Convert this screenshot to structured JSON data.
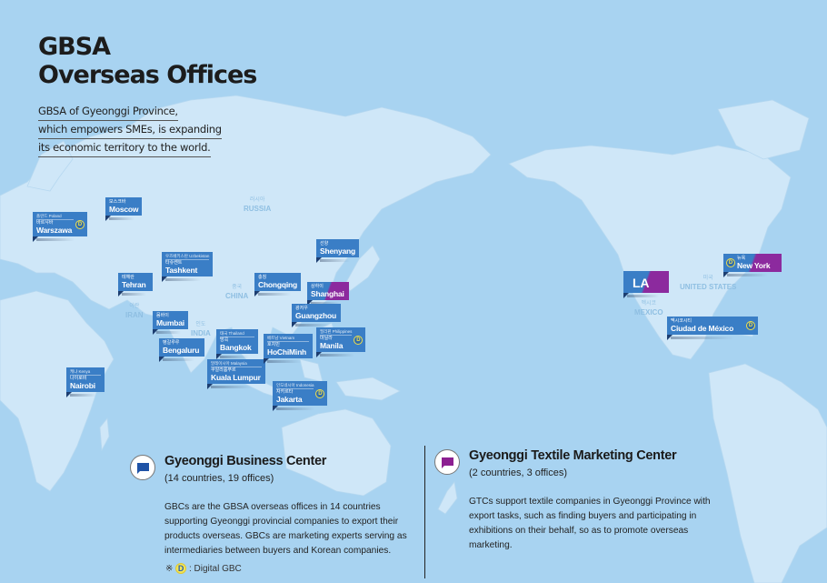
{
  "header": {
    "title_line1": "GBSA",
    "title_line2": "Overseas Offices",
    "intro": [
      "GBSA of Gyeonggi Province,",
      "which empowers SMEs, is expanding",
      "its economic territory to the world."
    ]
  },
  "colors": {
    "ocean": "#a8d3f1",
    "land": "#cfe7f8",
    "gbc": "#3a7ec6",
    "gtc": "#8c2a9e",
    "digital_badge": "#f1e14a"
  },
  "countries": [
    {
      "ko": "러시아",
      "en": "RUSSIA"
    },
    {
      "ko": "중국",
      "en": "CHINA"
    },
    {
      "ko": "이란",
      "en": "IRAN"
    },
    {
      "ko": "인도",
      "en": "INDIA"
    },
    {
      "ko": "미국",
      "en": "UNITED STATES"
    },
    {
      "ko": "멕시코",
      "en": "MEXICO"
    }
  ],
  "offices": [
    {
      "en": "Warszawa",
      "ko": "바르샤바",
      "country": "폴란드 Poland",
      "type": "gbc",
      "digital": true
    },
    {
      "en": "Moscow",
      "ko": "모스크바",
      "type": "gbc",
      "digital": false
    },
    {
      "en": "Tashkent",
      "ko": "타슈켄트",
      "country": "우즈베키스탄 Uzbekistan",
      "type": "gbc",
      "digital": false
    },
    {
      "en": "Tehran",
      "ko": "테헤란",
      "type": "gbc",
      "digital": false
    },
    {
      "en": "Mumbai",
      "ko": "뭄바이",
      "type": "gbc",
      "digital": false
    },
    {
      "en": "Bengaluru",
      "ko": "벵갈루루",
      "type": "gbc",
      "digital": false
    },
    {
      "en": "Nairobi",
      "ko": "나이로비",
      "country": "케냐 Kenya",
      "type": "gbc",
      "digital": false
    },
    {
      "en": "Bangkok",
      "ko": "방콕",
      "country": "태국 Thailand",
      "type": "gbc",
      "digital": false
    },
    {
      "en": "Kuala Lumpur",
      "ko": "쿠알라룸푸르",
      "country": "말레이시아 Malaysia",
      "type": "gbc",
      "digital": false
    },
    {
      "en": "HoChiMinh",
      "ko": "호치민",
      "country": "베트남 Vietnam",
      "type": "gbc",
      "digital": false
    },
    {
      "en": "Manila",
      "ko": "마닐라",
      "country": "필리핀 Philippines",
      "type": "gbc",
      "digital": true
    },
    {
      "en": "Jakarta",
      "ko": "자카르타",
      "country": "인도네시아 Indonesia",
      "type": "gbc",
      "digital": true
    },
    {
      "en": "Chongqing",
      "ko": "충칭",
      "type": "gbc",
      "digital": false
    },
    {
      "en": "Shanghai",
      "ko": "상하이",
      "type": "both",
      "digital": false
    },
    {
      "en": "Guangzhou",
      "ko": "광저우",
      "type": "gbc",
      "digital": false
    },
    {
      "en": "Shenyang",
      "ko": "선양",
      "type": "gbc",
      "digital": false
    },
    {
      "en": "LA",
      "type": "both",
      "digital": false
    },
    {
      "en": "New York",
      "ko": "뉴욕",
      "type": "both",
      "digital": true
    },
    {
      "en": "Ciudad de México",
      "ko": "멕시코시티",
      "type": "gbc",
      "digital": true
    }
  ],
  "legend": {
    "gbc": {
      "title": "Gyeonggi Business Center",
      "count": "(14 countries, 19 offices)",
      "description": "GBCs are the GBSA overseas offices in 14 countries supporting Gyeonggi provincial companies to export their products overseas. GBCs are marketing experts serving as intermediaries between buyers and Korean companies."
    },
    "gtc": {
      "title": "Gyeonggi Textile Marketing Center",
      "count": "(2 countries, 3 offices)",
      "description": "GTCs support textile companies in Gyeonggi Province with export tasks, such as finding buyers and participating in exhibitions on their behalf, so as to promote overseas marketing."
    },
    "note_symbol": "※",
    "note_badge": "D",
    "note_text": ": Digital GBC"
  }
}
